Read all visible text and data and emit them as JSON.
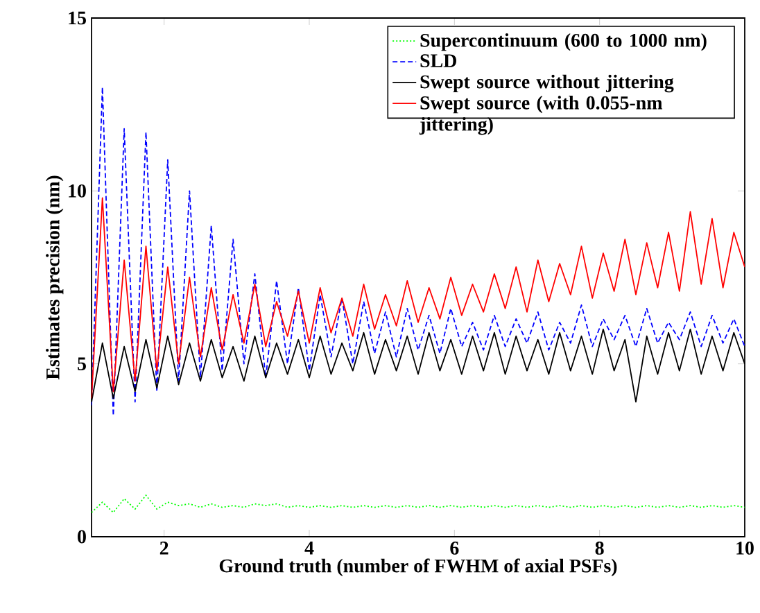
{
  "chart_data": {
    "type": "line",
    "xlabel": "Ground truth (number of FWHM of axial PSFs)",
    "ylabel": "Estimates precision (nm)",
    "xlim": [
      1,
      10
    ],
    "ylim": [
      0,
      15
    ],
    "xticks": [
      2,
      4,
      6,
      8,
      10
    ],
    "yticks": [
      0,
      5,
      10,
      15
    ],
    "grid": false,
    "legend": "top right",
    "x": [
      1.0,
      1.15,
      1.3,
      1.45,
      1.6,
      1.75,
      1.9,
      2.05,
      2.2,
      2.35,
      2.5,
      2.65,
      2.8,
      2.95,
      3.1,
      3.25,
      3.4,
      3.55,
      3.7,
      3.85,
      4.0,
      4.15,
      4.3,
      4.45,
      4.6,
      4.75,
      4.9,
      5.05,
      5.2,
      5.35,
      5.5,
      5.65,
      5.8,
      5.95,
      6.1,
      6.25,
      6.4,
      6.55,
      6.7,
      6.85,
      7.0,
      7.15,
      7.3,
      7.45,
      7.6,
      7.75,
      7.9,
      8.05,
      8.2,
      8.35,
      8.5,
      8.65,
      8.8,
      8.95,
      9.1,
      9.25,
      9.4,
      9.55,
      9.7,
      9.85,
      10.0
    ],
    "series": [
      {
        "name": "Supercontinuum (600 to 1000 nm)",
        "color": "#00ff00",
        "line_style": "dotted",
        "values": [
          0.7,
          1.0,
          0.7,
          1.1,
          0.8,
          1.2,
          0.8,
          1.0,
          0.9,
          0.95,
          0.85,
          0.95,
          0.85,
          0.9,
          0.85,
          0.95,
          0.9,
          0.95,
          0.85,
          0.9,
          0.85,
          0.9,
          0.85,
          0.9,
          0.85,
          0.9,
          0.85,
          0.9,
          0.85,
          0.9,
          0.85,
          0.9,
          0.85,
          0.9,
          0.85,
          0.9,
          0.85,
          0.9,
          0.85,
          0.9,
          0.85,
          0.9,
          0.85,
          0.9,
          0.85,
          0.9,
          0.85,
          0.9,
          0.85,
          0.9,
          0.85,
          0.9,
          0.85,
          0.9,
          0.85,
          0.9,
          0.85,
          0.9,
          0.85,
          0.9,
          0.85
        ]
      },
      {
        "name": "SLD",
        "color": "#0000ff",
        "line_style": "dashed",
        "values": [
          3.8,
          13.0,
          3.5,
          11.8,
          3.9,
          11.7,
          4.2,
          10.9,
          4.5,
          10.0,
          4.6,
          9.0,
          4.8,
          8.6,
          5.0,
          7.6,
          4.6,
          7.4,
          5.0,
          7.2,
          4.8,
          7.0,
          5.2,
          6.9,
          5.0,
          6.8,
          5.3,
          6.5,
          5.2,
          6.6,
          5.4,
          6.4,
          5.3,
          6.6,
          5.5,
          6.2,
          5.4,
          6.4,
          5.5,
          6.3,
          5.6,
          6.5,
          5.4,
          6.2,
          5.6,
          6.7,
          5.5,
          6.3,
          5.7,
          6.4,
          5.5,
          6.6,
          5.6,
          6.2,
          5.7,
          6.5,
          5.5,
          6.4,
          5.6,
          6.3,
          5.5
        ]
      },
      {
        "name": "Swept source without jittering",
        "color": "#000000",
        "line_style": "solid",
        "values": [
          3.9,
          5.6,
          4.0,
          5.5,
          4.2,
          5.7,
          4.3,
          5.8,
          4.4,
          5.6,
          4.5,
          5.7,
          4.6,
          5.5,
          4.5,
          5.8,
          4.6,
          5.6,
          4.7,
          5.7,
          4.6,
          5.8,
          4.7,
          5.6,
          4.8,
          5.9,
          4.7,
          5.7,
          4.8,
          5.8,
          4.7,
          5.9,
          4.8,
          5.7,
          4.7,
          5.8,
          4.8,
          5.9,
          4.7,
          5.8,
          4.8,
          5.7,
          4.7,
          5.9,
          4.8,
          5.8,
          4.7,
          6.0,
          4.8,
          5.7,
          3.9,
          5.8,
          4.7,
          5.9,
          4.8,
          6.0,
          4.7,
          5.8,
          4.8,
          5.9,
          5.0
        ]
      },
      {
        "name": "Swept source (with 0.055-nm jittering)",
        "color": "#ff0000",
        "line_style": "solid",
        "values": [
          4.0,
          9.8,
          4.2,
          8.0,
          4.5,
          8.4,
          4.8,
          7.8,
          5.0,
          7.5,
          5.2,
          7.2,
          5.4,
          7.0,
          5.6,
          7.3,
          5.5,
          6.8,
          5.8,
          7.1,
          5.6,
          7.2,
          5.9,
          6.9,
          5.8,
          7.3,
          6.0,
          7.0,
          6.1,
          7.4,
          6.2,
          7.2,
          6.3,
          7.5,
          6.4,
          7.3,
          6.5,
          7.6,
          6.6,
          7.8,
          6.5,
          8.0,
          6.8,
          7.9,
          7.0,
          8.4,
          6.9,
          8.2,
          7.1,
          8.6,
          7.0,
          8.5,
          7.2,
          8.8,
          7.1,
          9.4,
          7.3,
          9.2,
          7.2,
          8.8,
          7.8
        ]
      }
    ]
  }
}
